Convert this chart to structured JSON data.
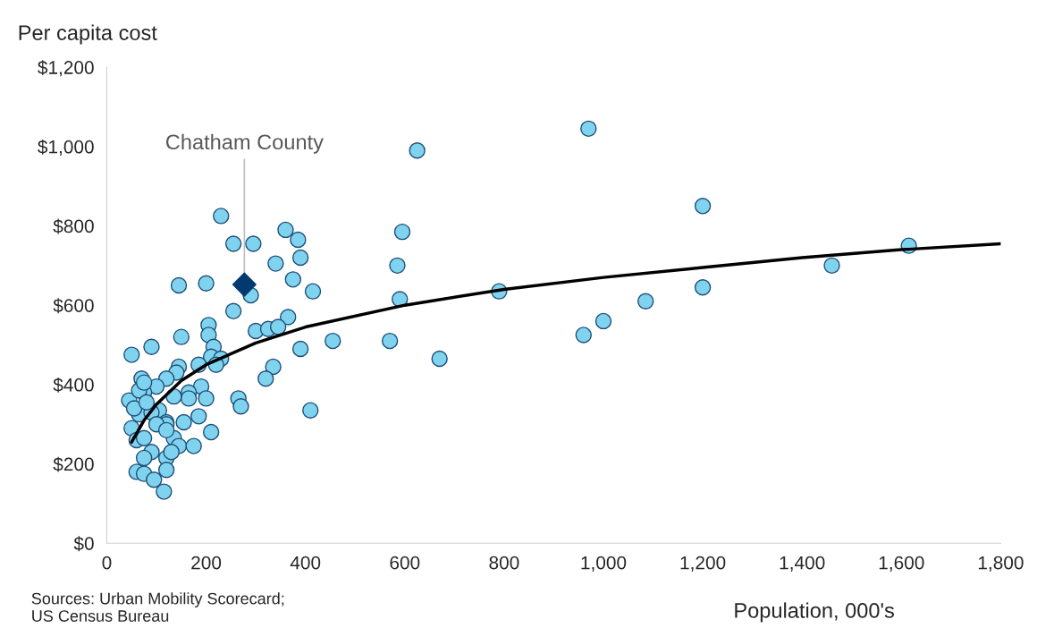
{
  "chart_data": {
    "type": "scatter",
    "ylabel": "Per capita cost",
    "xlabel": "Population, 000's",
    "xlim": [
      0,
      1800
    ],
    "ylim": [
      0,
      1200
    ],
    "xticks": [
      0,
      200,
      400,
      600,
      800,
      {
        "value": 1000,
        "label": "1,000"
      },
      {
        "value": 1200,
        "label": "1,200"
      },
      {
        "value": 1400,
        "label": "1,400"
      },
      {
        "value": 1600,
        "label": "1,600"
      },
      {
        "value": 1800,
        "label": "1,800"
      }
    ],
    "yticks": [
      {
        "value": 0,
        "label": "$0"
      },
      {
        "value": 200,
        "label": "$200"
      },
      {
        "value": 400,
        "label": "$400"
      },
      {
        "value": 600,
        "label": "$600"
      },
      {
        "value": 800,
        "label": "$800"
      },
      {
        "value": 1000,
        "label": "$1,000"
      },
      {
        "value": 1200,
        "label": "$1,200"
      }
    ],
    "grid": false,
    "legend": false,
    "series": [
      {
        "marker": "circle",
        "color": "#7fd3ee",
        "x": [
          230,
          255,
          295,
          360,
          385,
          390,
          340,
          375,
          415,
          145,
          200,
          290,
          255,
          205,
          205,
          365,
          300,
          325,
          345,
          455,
          570,
          50,
          90,
          150,
          215,
          210,
          230,
          220,
          185,
          145,
          140,
          335,
          320,
          390,
          190,
          120,
          100,
          70,
          165,
          165,
          200,
          135,
          105,
          265,
          270,
          410,
          185,
          155,
          120,
          45,
          75,
          50,
          60,
          75,
          65,
          90,
          120,
          100,
          210,
          135,
          120,
          145,
          175,
          90,
          75,
          120,
          130,
          120,
          60,
          75,
          95,
          115,
          55,
          65,
          75,
          80,
          625,
          970,
          1200,
          585,
          590,
          670,
          790,
          960,
          1000,
          1085,
          1200,
          1460,
          1615,
          595
        ],
        "values": [
          825,
          755,
          755,
          790,
          765,
          720,
          705,
          665,
          635,
          650,
          655,
          625,
          585,
          550,
          525,
          570,
          535,
          540,
          545,
          510,
          510,
          475,
          495,
          520,
          495,
          470,
          465,
          450,
          450,
          445,
          430,
          445,
          415,
          490,
          395,
          415,
          395,
          415,
          380,
          365,
          365,
          370,
          335,
          365,
          345,
          335,
          320,
          305,
          305,
          360,
          380,
          290,
          260,
          265,
          325,
          330,
          300,
          300,
          280,
          265,
          285,
          245,
          245,
          230,
          215,
          215,
          230,
          185,
          180,
          175,
          160,
          130,
          340,
          385,
          405,
          355,
          990,
          1045,
          850,
          700,
          615,
          465,
          635,
          525,
          560,
          610,
          645,
          700,
          750,
          785
        ]
      },
      {
        "marker": "diamond",
        "color": "#003a70",
        "x": [
          277
        ],
        "values": [
          652
        ]
      },
      {
        "type": "line",
        "marker": "none",
        "line_style": "solid",
        "color": "#000000",
        "x": [
          50,
          75,
          100,
          150,
          200,
          300,
          400,
          600,
          800,
          1000,
          1200,
          1400,
          1600,
          1800
        ],
        "values": [
          255,
          310,
          350,
          410,
          450,
          505,
          545,
          600,
          640,
          670,
          695,
          720,
          740,
          755
        ]
      }
    ],
    "annotations": [
      {
        "text": "Chatham County",
        "x": 277,
        "y": 652
      },
      "Sources: Urban Mobility Scorecard;\nUS Census Bureau"
    ]
  }
}
